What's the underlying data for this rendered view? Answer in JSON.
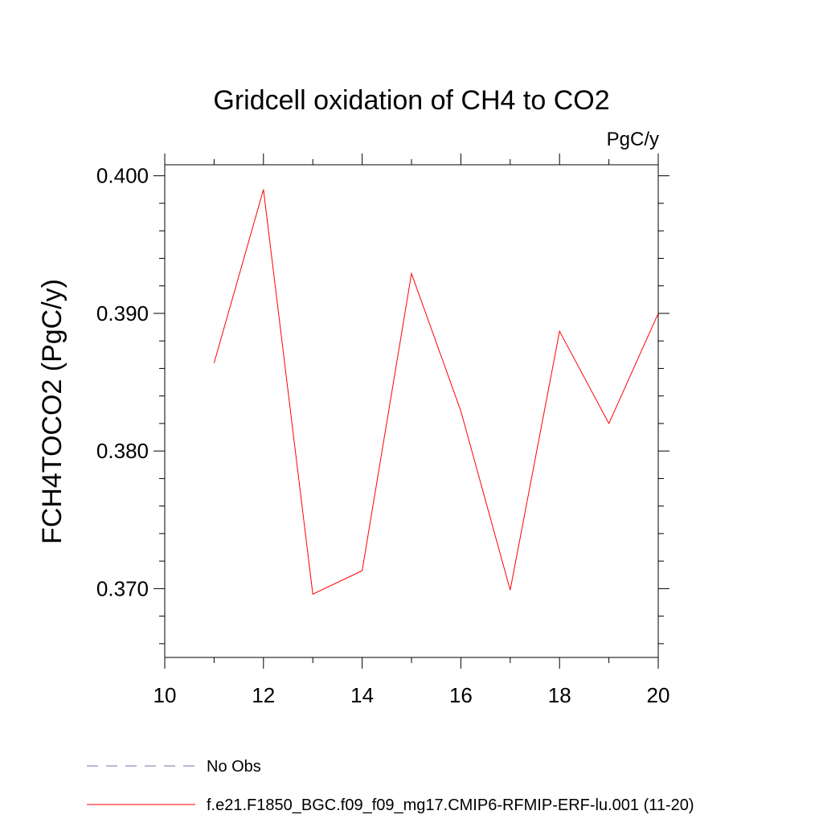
{
  "chart_data": {
    "type": "line",
    "title": "Gridcell oxidation of CH4 to CO2",
    "units_label": "PgC/y",
    "ylabel": "FCH4TOCO2  (PgC/y)",
    "xlabel": "",
    "xlim": [
      10,
      20
    ],
    "ylim": [
      0.365,
      0.4008
    ],
    "x_ticks": [
      10,
      12,
      14,
      16,
      18,
      20
    ],
    "x_tick_labels": [
      "10",
      "12",
      "14",
      "16",
      "18",
      "20"
    ],
    "y_ticks": [
      0.37,
      0.38,
      0.39,
      0.4
    ],
    "y_tick_labels": [
      "0.370",
      "0.380",
      "0.390",
      "0.400"
    ],
    "grid": false,
    "series": [
      {
        "name": "f.e21.F1850_BGC.f09_f09_mg17.CMIP6-RFMIP-ERF-lu.001 (11-20)",
        "color": "#ff0000",
        "style": "solid",
        "x": [
          11,
          12,
          13,
          14,
          15,
          16,
          17,
          18,
          19,
          20
        ],
        "y": [
          0.3864,
          0.399,
          0.3696,
          0.3713,
          0.3929,
          0.3829,
          0.3699,
          0.3887,
          0.382,
          0.39
        ]
      }
    ],
    "legend": {
      "placement": "bottom-left",
      "entries": [
        {
          "label": "No Obs",
          "color": "#7b6fb0",
          "style": "dashed"
        },
        {
          "label": "f.e21.F1850_BGC.f09_f09_mg17.CMIP6-RFMIP-ERF-lu.001 (11-20)",
          "color": "#ff0000",
          "style": "solid"
        }
      ]
    }
  }
}
